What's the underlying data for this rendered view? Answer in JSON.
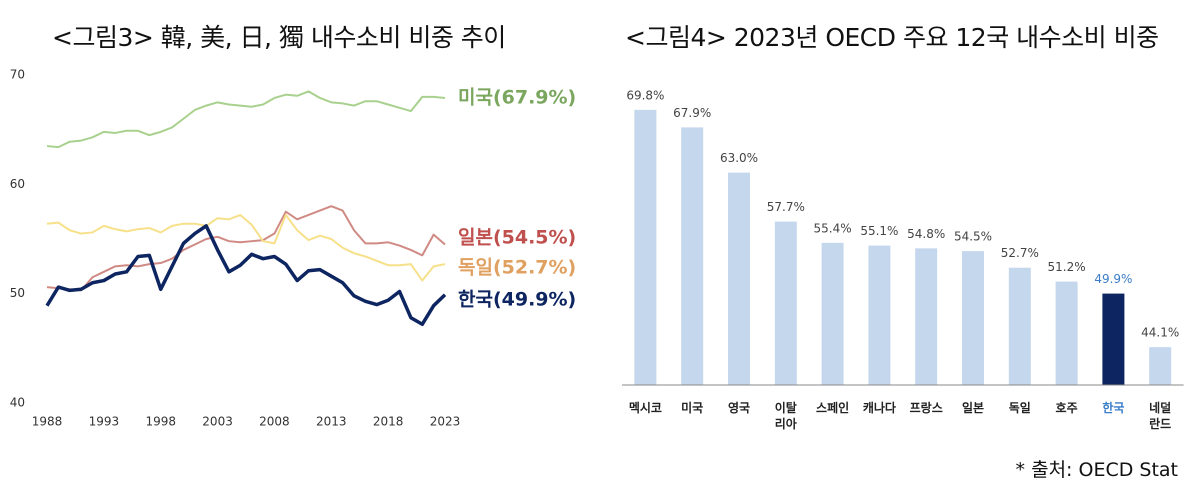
{
  "chart_data": [
    {
      "type": "line",
      "title": "<그림3> 韓, 美, 日, 獨 내수소비 비중 추이",
      "x": [
        1988,
        1989,
        1990,
        1991,
        1992,
        1993,
        1994,
        1995,
        1996,
        1997,
        1998,
        1999,
        2000,
        2001,
        2002,
        2003,
        2004,
        2005,
        2006,
        2007,
        2008,
        2009,
        2010,
        2011,
        2012,
        2013,
        2014,
        2015,
        2016,
        2017,
        2018,
        2019,
        2020,
        2021,
        2022,
        2023
      ],
      "xlim": [
        1988,
        2023
      ],
      "xticks": [
        1988,
        1993,
        1998,
        2003,
        2008,
        2013,
        2018,
        2023
      ],
      "ylim": [
        40,
        70
      ],
      "yticks": [
        40,
        50,
        60,
        70
      ],
      "series": [
        {
          "name": "미국(67.9%)",
          "color": "#a9d18e",
          "label_color": "#7aa65e",
          "width": 2,
          "values": [
            63.5,
            63.4,
            63.9,
            64.0,
            64.3,
            64.8,
            64.7,
            64.9,
            64.9,
            64.5,
            64.8,
            65.2,
            66.0,
            66.8,
            67.2,
            67.5,
            67.3,
            67.2,
            67.1,
            67.3,
            67.9,
            68.2,
            68.1,
            68.5,
            67.9,
            67.5,
            67.4,
            67.2,
            67.6,
            67.6,
            67.3,
            67.0,
            66.7,
            68.0,
            68.0,
            67.9
          ]
        },
        {
          "name": "일본(54.5%)",
          "color": "#d08a84",
          "label_color": "#c0504d",
          "width": 2,
          "values": [
            50.6,
            50.5,
            50.4,
            50.3,
            51.5,
            52.0,
            52.5,
            52.6,
            52.5,
            52.7,
            52.8,
            53.2,
            54.0,
            54.5,
            55.0,
            55.2,
            54.8,
            54.7,
            54.8,
            54.9,
            55.5,
            57.5,
            56.8,
            57.2,
            57.6,
            58.0,
            57.6,
            55.8,
            54.6,
            54.6,
            54.7,
            54.4,
            54.0,
            53.5,
            55.4,
            54.5
          ]
        },
        {
          "name": "독일(52.7%)",
          "color": "#f7e08a",
          "label_color": "#e0a060",
          "width": 2,
          "values": [
            56.4,
            56.5,
            55.8,
            55.5,
            55.6,
            56.2,
            55.9,
            55.7,
            55.9,
            56.0,
            55.6,
            56.2,
            56.4,
            56.4,
            56.2,
            56.9,
            56.8,
            57.2,
            56.3,
            54.8,
            54.6,
            57.2,
            55.8,
            54.9,
            55.3,
            55.0,
            54.2,
            53.7,
            53.4,
            53.0,
            52.6,
            52.6,
            52.7,
            51.2,
            52.5,
            52.7
          ]
        },
        {
          "name": "한국(49.9%)",
          "color": "#0d2560",
          "label_color": "#0d2560",
          "width": 3.5,
          "values": [
            48.9,
            50.6,
            50.3,
            50.4,
            51.0,
            51.2,
            51.8,
            52.0,
            53.4,
            53.5,
            50.4,
            52.5,
            54.6,
            55.5,
            56.2,
            54.0,
            52.0,
            52.6,
            53.6,
            53.2,
            53.4,
            52.7,
            51.2,
            52.1,
            52.2,
            51.6,
            51.0,
            49.8,
            49.3,
            49.0,
            49.4,
            50.2,
            47.8,
            47.2,
            48.9,
            49.9
          ]
        }
      ]
    },
    {
      "type": "bar",
      "title": "<그림4> 2023년 OECD 주요 12국 내수소비 비중",
      "categories": [
        "멕시코",
        "미국",
        "영국",
        "이탈\n리아",
        "스페인",
        "캐나다",
        "프랑스",
        "일본",
        "독일",
        "호주",
        "한국",
        "네덜\n란드"
      ],
      "values": [
        69.8,
        67.9,
        63.0,
        57.7,
        55.4,
        55.1,
        54.8,
        54.5,
        52.7,
        51.2,
        49.9,
        44.1
      ],
      "value_labels": [
        "69.8%",
        "67.9%",
        "63.0%",
        "57.7%",
        "55.4%",
        "55.1%",
        "54.8%",
        "54.5%",
        "52.7%",
        "51.2%",
        "49.9%",
        "44.1%"
      ],
      "colors": [
        "#c5d7ed",
        "#c5d7ed",
        "#c5d7ed",
        "#c5d7ed",
        "#c5d7ed",
        "#c5d7ed",
        "#c5d7ed",
        "#c5d7ed",
        "#c5d7ed",
        "#c5d7ed",
        "#0d2560",
        "#c5d7ed"
      ],
      "label_colors": [
        "#222",
        "#222",
        "#222",
        "#222",
        "#222",
        "#222",
        "#222",
        "#222",
        "#222",
        "#222",
        "#3a7dc9",
        "#222"
      ],
      "ylim": [
        40,
        70
      ],
      "source": "* 출처: OECD Stat"
    }
  ]
}
